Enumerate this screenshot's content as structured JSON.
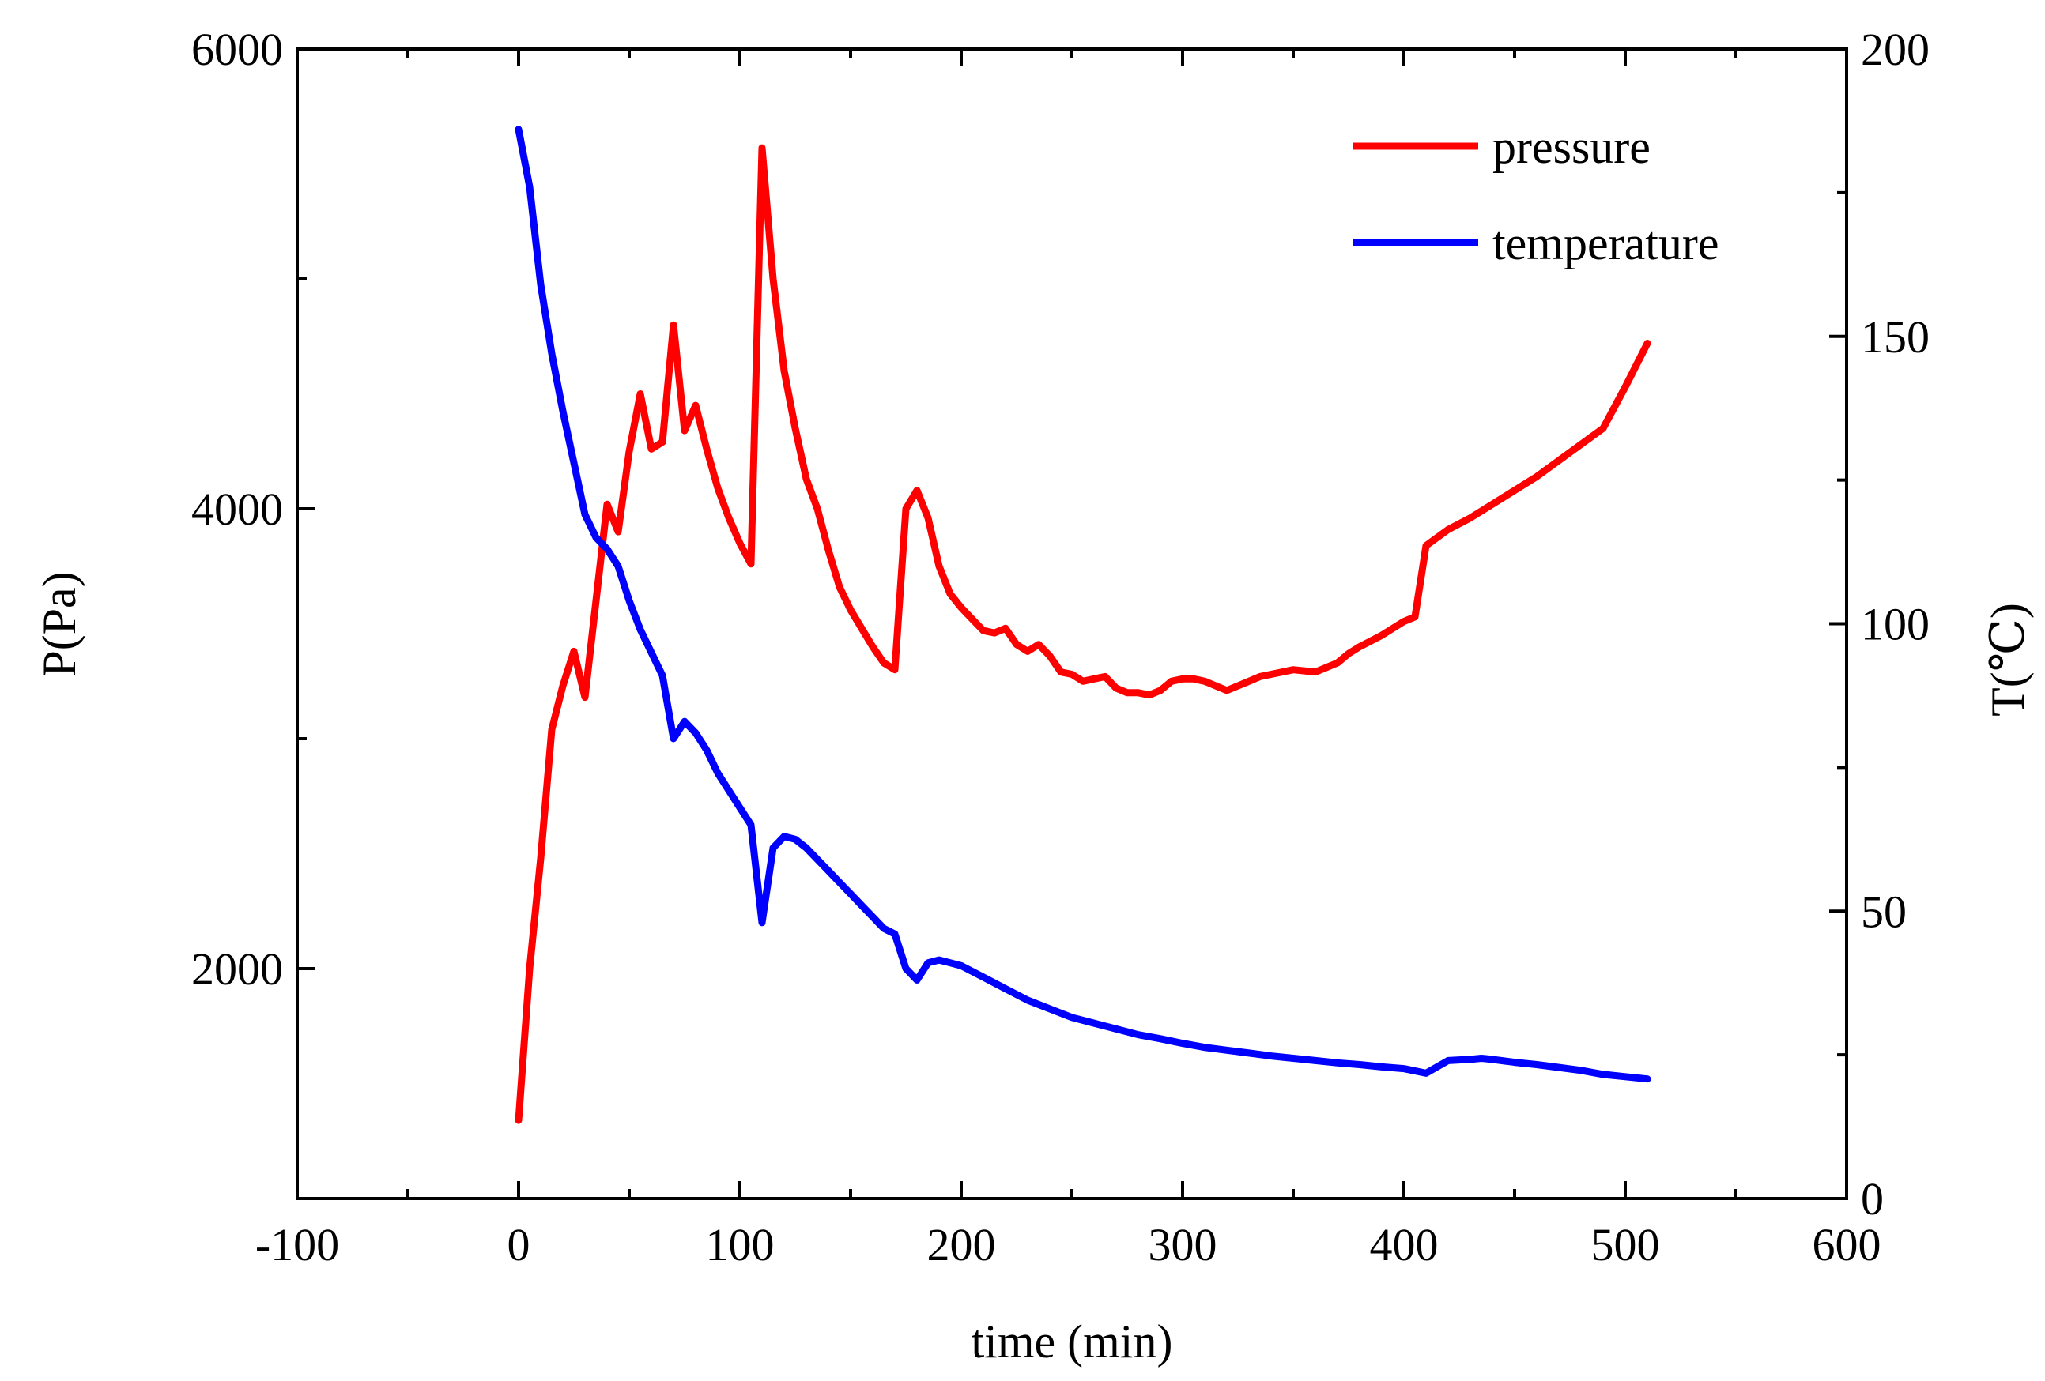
{
  "chart_data": {
    "type": "line",
    "title": "",
    "xlabel": "time (min)",
    "ylabel_left": "P(Pa)",
    "ylabel_right": "T(℃)",
    "xlim": [
      -100,
      600
    ],
    "ylim_left": [
      1000,
      6000
    ],
    "ylim_right": [
      0,
      200
    ],
    "x_ticks": [
      -100,
      0,
      100,
      200,
      300,
      400,
      500,
      600
    ],
    "x_tick_labels": [
      "-100",
      "0",
      "100",
      "200",
      "300",
      "400",
      "500",
      "600"
    ],
    "y_left_ticks": [
      2000,
      4000,
      6000
    ],
    "y_left_tick_labels": [
      "2000",
      "4000",
      "6000"
    ],
    "y_right_ticks": [
      0,
      50,
      100,
      150,
      200
    ],
    "y_right_tick_labels": [
      "0",
      "50",
      "100",
      "150",
      "200"
    ],
    "legend_position": "top-right",
    "grid": false,
    "series": [
      {
        "name": "pressure",
        "axis": "left",
        "color": "#ff0000",
        "x": [
          0,
          5,
          10,
          15,
          20,
          25,
          30,
          35,
          40,
          45,
          50,
          55,
          60,
          65,
          70,
          75,
          80,
          85,
          90,
          95,
          100,
          105,
          110,
          115,
          120,
          125,
          130,
          135,
          140,
          145,
          150,
          155,
          160,
          165,
          170,
          175,
          180,
          185,
          190,
          195,
          200,
          205,
          210,
          215,
          220,
          225,
          230,
          235,
          240,
          245,
          250,
          255,
          260,
          265,
          270,
          275,
          280,
          285,
          290,
          295,
          300,
          305,
          310,
          315,
          320,
          325,
          330,
          335,
          340,
          345,
          350,
          360,
          365,
          370,
          375,
          380,
          390,
          400,
          405,
          410,
          420,
          430,
          440,
          450,
          460,
          470,
          480,
          490,
          500,
          510
        ],
        "values": [
          1340,
          2000,
          2480,
          3040,
          3230,
          3380,
          3180,
          3600,
          4020,
          3900,
          4250,
          4500,
          4260,
          4290,
          4800,
          4340,
          4450,
          4260,
          4090,
          3960,
          3850,
          3760,
          5570,
          5000,
          4600,
          4350,
          4130,
          4000,
          3820,
          3660,
          3560,
          3480,
          3400,
          3330,
          3300,
          4000,
          4080,
          3960,
          3750,
          3630,
          3570,
          3520,
          3470,
          3460,
          3480,
          3410,
          3380,
          3410,
          3360,
          3290,
          3280,
          3250,
          3260,
          3270,
          3220,
          3200,
          3200,
          3190,
          3210,
          3250,
          3260,
          3260,
          3250,
          3230,
          3210,
          3230,
          3250,
          3270,
          3280,
          3290,
          3300,
          3290,
          3310,
          3330,
          3370,
          3400,
          3450,
          3510,
          3530,
          3840,
          3910,
          3960,
          4020,
          4080,
          4140,
          4210,
          4280,
          4350,
          4530,
          4720
        ]
      },
      {
        "name": "temperature",
        "axis": "right",
        "color": "#0000ff",
        "x": [
          0,
          5,
          10,
          15,
          20,
          25,
          30,
          35,
          40,
          45,
          50,
          55,
          60,
          65,
          70,
          75,
          80,
          85,
          90,
          95,
          100,
          105,
          110,
          115,
          120,
          125,
          130,
          135,
          140,
          145,
          150,
          155,
          160,
          165,
          170,
          175,
          180,
          185,
          190,
          195,
          200,
          210,
          220,
          230,
          240,
          250,
          260,
          270,
          280,
          290,
          300,
          310,
          320,
          330,
          340,
          350,
          360,
          370,
          380,
          390,
          400,
          410,
          420,
          430,
          435,
          440,
          450,
          460,
          470,
          480,
          490,
          500,
          510
        ],
        "values": [
          186,
          176,
          159,
          147,
          137,
          128,
          119,
          115,
          113,
          110,
          104,
          99,
          95,
          91,
          80,
          83,
          81,
          78,
          74,
          71,
          68,
          65,
          48,
          61,
          63,
          62.5,
          61,
          59,
          57,
          55,
          53,
          51,
          49,
          47,
          46,
          40,
          38,
          41,
          41.5,
          41,
          40.5,
          38.5,
          36.5,
          34.5,
          33,
          31.5,
          30.5,
          29.5,
          28.5,
          27.8,
          27,
          26.3,
          25.8,
          25.3,
          24.8,
          24.4,
          24,
          23.6,
          23.3,
          22.9,
          22.6,
          21.8,
          24,
          24.2,
          24.4,
          24.2,
          23.7,
          23.3,
          22.8,
          22.3,
          21.6,
          21.2,
          20.8
        ]
      }
    ]
  }
}
